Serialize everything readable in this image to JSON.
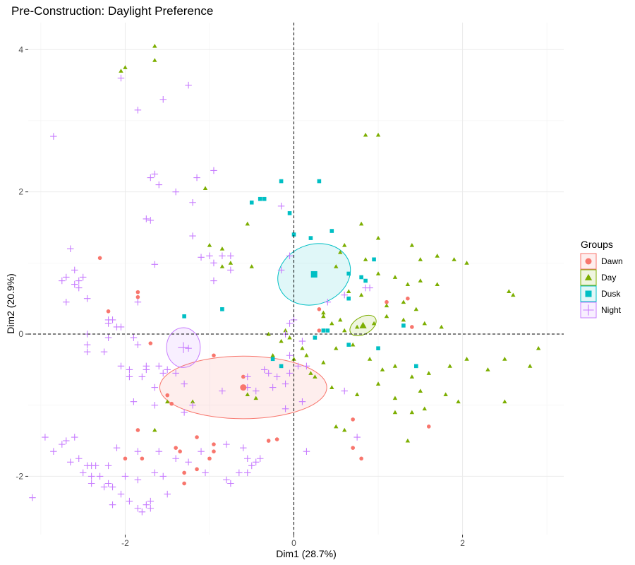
{
  "chart_data": {
    "type": "scatter",
    "title": "Pre-Construction: Daylight Preference",
    "xlabel": "Dim1 (28.7%)",
    "ylabel": "Dim2 (20.9%)",
    "xlim": [
      -3.15,
      3.2
    ],
    "ylim": [
      -2.82,
      4.38
    ],
    "xticks": [
      -2,
      0,
      2
    ],
    "yticks": [
      -2,
      0,
      2,
      4
    ],
    "xtick_labels": [
      "-2",
      "0",
      "2"
    ],
    "ytick_labels": [
      "-2",
      "0",
      "2",
      "4"
    ],
    "grid": true,
    "reference_lines": {
      "x": 0,
      "y": 0,
      "style": "dashed"
    },
    "legend": {
      "title": "Groups",
      "position": "right"
    },
    "series": [
      {
        "name": "Dawn",
        "color": "#F8766D",
        "shape": "circle",
        "points": [
          [
            -2.3,
            1.07
          ],
          [
            -2.2,
            0.32
          ],
          [
            -1.85,
            0.59
          ],
          [
            -1.85,
            0.52
          ],
          [
            -1.7,
            -0.13
          ],
          [
            -1.5,
            -0.86
          ],
          [
            -1.45,
            -0.98
          ],
          [
            -1.85,
            -1.35
          ],
          [
            -2.0,
            -1.75
          ],
          [
            -1.8,
            -1.75
          ],
          [
            -1.4,
            -1.6
          ],
          [
            -1.35,
            -1.65
          ],
          [
            -1.3,
            -1.95
          ],
          [
            -1.3,
            -2.1
          ],
          [
            -1.15,
            -1.9
          ],
          [
            -1.15,
            -1.45
          ],
          [
            -1.0,
            -1.75
          ],
          [
            -0.95,
            -1.55
          ],
          [
            -0.95,
            -1.65
          ],
          [
            -0.95,
            -0.3
          ],
          [
            -0.3,
            -1.5
          ],
          [
            -0.2,
            -1.48
          ],
          [
            -0.6,
            -0.6
          ],
          [
            0.3,
            0.05
          ],
          [
            0.3,
            0.35
          ],
          [
            0.65,
            0.5
          ],
          [
            0.7,
            -1.2
          ],
          [
            0.7,
            -1.6
          ],
          [
            0.8,
            -1.75
          ],
          [
            1.1,
            0.45
          ],
          [
            1.35,
            0.5
          ],
          [
            1.4,
            0.1
          ],
          [
            1.6,
            -1.3
          ]
        ]
      },
      {
        "name": "Day",
        "color": "#7CAE00",
        "shape": "triangle",
        "points": [
          [
            -1.65,
            4.05
          ],
          [
            -1.65,
            3.85
          ],
          [
            -2.05,
            3.7
          ],
          [
            -2.0,
            3.75
          ],
          [
            -1.05,
            2.05
          ],
          [
            -0.55,
            1.55
          ],
          [
            -1.0,
            1.25
          ],
          [
            -0.85,
            1.2
          ],
          [
            -0.75,
            1.0
          ],
          [
            -0.5,
            0.95
          ],
          [
            -0.85,
            0.95
          ],
          [
            0.55,
            1.15
          ],
          [
            0.6,
            1.25
          ],
          [
            0.8,
            1.55
          ],
          [
            0.85,
            2.8
          ],
          [
            1.0,
            2.8
          ],
          [
            0.5,
            0.95
          ],
          [
            0.85,
            1.05
          ],
          [
            1.0,
            1.35
          ],
          [
            1.4,
            1.25
          ],
          [
            1.5,
            1.05
          ],
          [
            1.7,
            1.1
          ],
          [
            1.9,
            1.05
          ],
          [
            2.05,
            1.0
          ],
          [
            2.55,
            0.6
          ],
          [
            2.6,
            0.55
          ],
          [
            1.0,
            0.85
          ],
          [
            1.2,
            0.8
          ],
          [
            1.35,
            0.7
          ],
          [
            1.5,
            0.75
          ],
          [
            1.7,
            0.7
          ],
          [
            0.65,
            0.6
          ],
          [
            0.8,
            0.55
          ],
          [
            1.1,
            0.4
          ],
          [
            1.3,
            0.45
          ],
          [
            1.45,
            0.35
          ],
          [
            0.35,
            0.25
          ],
          [
            0.45,
            0.15
          ],
          [
            0.55,
            0.2
          ],
          [
            0.6,
            0.05
          ],
          [
            0.75,
            0.1
          ],
          [
            0.95,
            0.15
          ],
          [
            1.1,
            0.25
          ],
          [
            1.3,
            0.2
          ],
          [
            1.55,
            0.15
          ],
          [
            1.75,
            0.1
          ],
          [
            0.15,
            -0.3
          ],
          [
            0.35,
            -0.4
          ],
          [
            0.5,
            -0.2
          ],
          [
            0.7,
            -0.15
          ],
          [
            0.9,
            -0.35
          ],
          [
            1.05,
            -0.5
          ],
          [
            1.2,
            -0.45
          ],
          [
            1.4,
            -0.6
          ],
          [
            1.6,
            -0.55
          ],
          [
            1.85,
            -0.45
          ],
          [
            2.05,
            -0.35
          ],
          [
            2.3,
            -0.5
          ],
          [
            2.5,
            -0.35
          ],
          [
            2.8,
            -0.45
          ],
          [
            2.9,
            -0.2
          ],
          [
            0.25,
            -0.6
          ],
          [
            0.45,
            -0.75
          ],
          [
            0.75,
            -0.85
          ],
          [
            1.0,
            -0.7
          ],
          [
            1.2,
            -0.9
          ],
          [
            1.5,
            -0.8
          ],
          [
            1.8,
            -0.85
          ],
          [
            1.95,
            -0.95
          ],
          [
            2.5,
            -0.95
          ],
          [
            1.2,
            -1.1
          ],
          [
            1.4,
            -1.1
          ],
          [
            1.55,
            -1.05
          ],
          [
            1.35,
            -1.5
          ],
          [
            0.5,
            -1.3
          ],
          [
            0.6,
            -1.35
          ],
          [
            -0.45,
            -0.9
          ],
          [
            -0.55,
            -0.85
          ],
          [
            -1.5,
            -0.95
          ],
          [
            -1.2,
            -0.95
          ],
          [
            -1.65,
            -1.35
          ],
          [
            -0.05,
            -0.05
          ],
          [
            0.1,
            -0.2
          ],
          [
            -0.1,
            0.05
          ],
          [
            -0.15,
            -0.1
          ],
          [
            0.0,
            -0.35
          ],
          [
            0.2,
            -0.55
          ],
          [
            -0.3,
            0.0
          ],
          [
            -0.25,
            -0.3
          ],
          [
            0.35,
            0.3
          ]
        ]
      },
      {
        "name": "Dusk",
        "color": "#00BFC4",
        "shape": "square",
        "points": [
          [
            -0.15,
            2.15
          ],
          [
            0.3,
            2.15
          ],
          [
            -0.4,
            1.9
          ],
          [
            -0.35,
            1.9
          ],
          [
            -0.5,
            1.85
          ],
          [
            -0.05,
            1.7
          ],
          [
            0.0,
            1.4
          ],
          [
            0.2,
            1.35
          ],
          [
            0.45,
            1.45
          ],
          [
            0.95,
            1.05
          ],
          [
            0.65,
            0.85
          ],
          [
            0.8,
            0.8
          ],
          [
            -0.85,
            0.35
          ],
          [
            -1.3,
            0.25
          ],
          [
            0.65,
            0.5
          ],
          [
            0.35,
            0.05
          ],
          [
            0.4,
            0.05
          ],
          [
            0.25,
            -0.05
          ],
          [
            1.3,
            0.12
          ],
          [
            0.65,
            -0.15
          ],
          [
            1.0,
            -0.2
          ],
          [
            -0.15,
            -0.45
          ],
          [
            -0.25,
            -0.35
          ],
          [
            1.45,
            -0.45
          ],
          [
            0.85,
            0.75
          ]
        ]
      },
      {
        "name": "Night",
        "color": "#C77CFF",
        "shape": "plus",
        "points": [
          [
            -2.85,
            2.78
          ],
          [
            -2.05,
            3.6
          ],
          [
            -1.85,
            3.15
          ],
          [
            -1.55,
            3.3
          ],
          [
            -1.25,
            3.5
          ],
          [
            -1.7,
            2.2
          ],
          [
            -1.65,
            2.25
          ],
          [
            -1.6,
            2.1
          ],
          [
            -1.4,
            2.0
          ],
          [
            -1.2,
            1.85
          ],
          [
            -1.2,
            1.38
          ],
          [
            -1.15,
            2.2
          ],
          [
            -0.95,
            2.3
          ],
          [
            -1.75,
            1.62
          ],
          [
            -1.7,
            1.6
          ],
          [
            -1.65,
            0.98
          ],
          [
            -2.65,
            1.2
          ],
          [
            -2.7,
            0.8
          ],
          [
            -2.75,
            0.75
          ],
          [
            -2.6,
            0.7
          ],
          [
            -2.55,
            0.75
          ],
          [
            -2.5,
            0.8
          ],
          [
            -2.55,
            0.65
          ],
          [
            -2.45,
            0.5
          ],
          [
            -2.7,
            0.45
          ],
          [
            -2.6,
            0.9
          ],
          [
            -2.2,
            0.2
          ],
          [
            -2.15,
            0.2
          ],
          [
            -2.1,
            0.1
          ],
          [
            -2.05,
            0.1
          ],
          [
            -2.2,
            0.15
          ],
          [
            -2.25,
            -0.25
          ],
          [
            -2.45,
            0.0
          ],
          [
            -2.45,
            -0.15
          ],
          [
            -2.45,
            -0.25
          ],
          [
            -1.85,
            0.45
          ],
          [
            -1.75,
            -0.45
          ],
          [
            -1.6,
            -0.45
          ],
          [
            -1.55,
            -0.55
          ],
          [
            -1.65,
            -0.75
          ],
          [
            -1.8,
            -0.6
          ],
          [
            -1.95,
            -0.6
          ],
          [
            -2.05,
            -0.45
          ],
          [
            -1.9,
            -0.95
          ],
          [
            -1.65,
            -1.0
          ],
          [
            -1.3,
            -1.1
          ],
          [
            -1.2,
            -1.0
          ],
          [
            -1.3,
            -0.7
          ],
          [
            -1.4,
            -0.55
          ],
          [
            -1.5,
            -0.5
          ],
          [
            -1.75,
            -0.5
          ],
          [
            -1.1,
            1.08
          ],
          [
            -1.0,
            1.1
          ],
          [
            -0.95,
            1.0
          ],
          [
            -0.85,
            1.1
          ],
          [
            -0.75,
            1.1
          ],
          [
            -0.75,
            0.9
          ],
          [
            -0.95,
            0.75
          ],
          [
            -0.15,
            1.8
          ],
          [
            -0.05,
            1.1
          ],
          [
            -0.15,
            0.9
          ],
          [
            -1.25,
            -0.2
          ],
          [
            -0.85,
            -0.8
          ],
          [
            -0.55,
            -0.6
          ],
          [
            -0.55,
            -0.75
          ],
          [
            -0.45,
            -0.8
          ],
          [
            -0.35,
            -0.5
          ],
          [
            -0.3,
            -0.55
          ],
          [
            -0.2,
            -0.6
          ],
          [
            -0.25,
            -0.75
          ],
          [
            -0.1,
            -0.7
          ],
          [
            -0.1,
            -1.05
          ],
          [
            0.05,
            -0.45
          ],
          [
            -0.05,
            -0.55
          ],
          [
            -0.05,
            -0.3
          ],
          [
            0.1,
            -0.95
          ],
          [
            0.15,
            -0.45
          ],
          [
            0.1,
            -0.1
          ],
          [
            -0.1,
            0.0
          ],
          [
            -0.05,
            0.15
          ],
          [
            -2.0,
            -2.0
          ],
          [
            -1.85,
            -2.05
          ],
          [
            -1.65,
            -1.95
          ],
          [
            -1.55,
            -2.0
          ],
          [
            -1.6,
            -1.65
          ],
          [
            -1.4,
            -1.75
          ],
          [
            -1.25,
            -1.8
          ],
          [
            -1.1,
            -1.65
          ],
          [
            -1.05,
            -1.95
          ],
          [
            -0.8,
            -1.55
          ],
          [
            -0.8,
            -2.05
          ],
          [
            -0.65,
            -1.95
          ],
          [
            -0.55,
            -1.75
          ],
          [
            -0.6,
            -1.6
          ],
          [
            -0.55,
            -1.95
          ],
          [
            -0.5,
            -1.85
          ],
          [
            -0.45,
            -1.8
          ],
          [
            -0.4,
            -1.75
          ],
          [
            -2.95,
            -1.45
          ],
          [
            -2.85,
            -1.65
          ],
          [
            -2.75,
            -1.55
          ],
          [
            -2.7,
            -1.5
          ],
          [
            -2.6,
            -1.45
          ],
          [
            -2.65,
            -1.8
          ],
          [
            -2.45,
            -1.85
          ],
          [
            -2.5,
            -1.95
          ],
          [
            -2.4,
            -2.0
          ],
          [
            -2.4,
            -1.85
          ],
          [
            -2.35,
            -1.85
          ],
          [
            -2.3,
            -2.0
          ],
          [
            -2.25,
            -2.15
          ],
          [
            -2.2,
            -2.1
          ],
          [
            -2.2,
            -1.85
          ],
          [
            -2.15,
            -2.15
          ],
          [
            -2.15,
            -2.4
          ],
          [
            -2.05,
            -2.25
          ],
          [
            -1.95,
            -2.35
          ],
          [
            -1.85,
            -2.45
          ],
          [
            -1.8,
            -2.5
          ],
          [
            -1.75,
            -2.4
          ],
          [
            -1.7,
            -2.45
          ],
          [
            -1.7,
            -2.35
          ],
          [
            -1.5,
            -2.25
          ],
          [
            -2.1,
            -1.6
          ],
          [
            -1.85,
            -1.65
          ],
          [
            -2.4,
            -2.1
          ],
          [
            -3.1,
            -2.3
          ],
          [
            -2.55,
            -1.75
          ],
          [
            -0.75,
            -2.1
          ],
          [
            0.15,
            -1.65
          ],
          [
            0.6,
            -0.8
          ],
          [
            0.75,
            -1.45
          ],
          [
            0.85,
            0.65
          ],
          [
            0.9,
            0.65
          ],
          [
            0.6,
            0.55
          ],
          [
            0.4,
            0.45
          ],
          [
            0.0,
            0.2
          ],
          [
            -1.95,
            -0.5
          ],
          [
            -1.9,
            -0.05
          ],
          [
            -1.85,
            -0.15
          ],
          [
            -2.2,
            -0.05
          ]
        ]
      }
    ],
    "ellipses": [
      {
        "name": "Dawn",
        "cx": -0.6,
        "cy": -0.75,
        "rx": 0.99,
        "ry": 0.44,
        "angle": 0,
        "center_shape": "circle"
      },
      {
        "name": "Day",
        "cx": 0.82,
        "cy": 0.12,
        "rx": 0.17,
        "ry": 0.12,
        "angle": -30,
        "center_shape": "triangle"
      },
      {
        "name": "Dusk",
        "cx": 0.24,
        "cy": 0.84,
        "rx": 0.44,
        "ry": 0.42,
        "angle": -20,
        "center_shape": "square"
      },
      {
        "name": "Night",
        "cx": -1.31,
        "cy": -0.19,
        "rx": 0.2,
        "ry": 0.28,
        "angle": 0,
        "center_shape": "plus"
      }
    ]
  }
}
